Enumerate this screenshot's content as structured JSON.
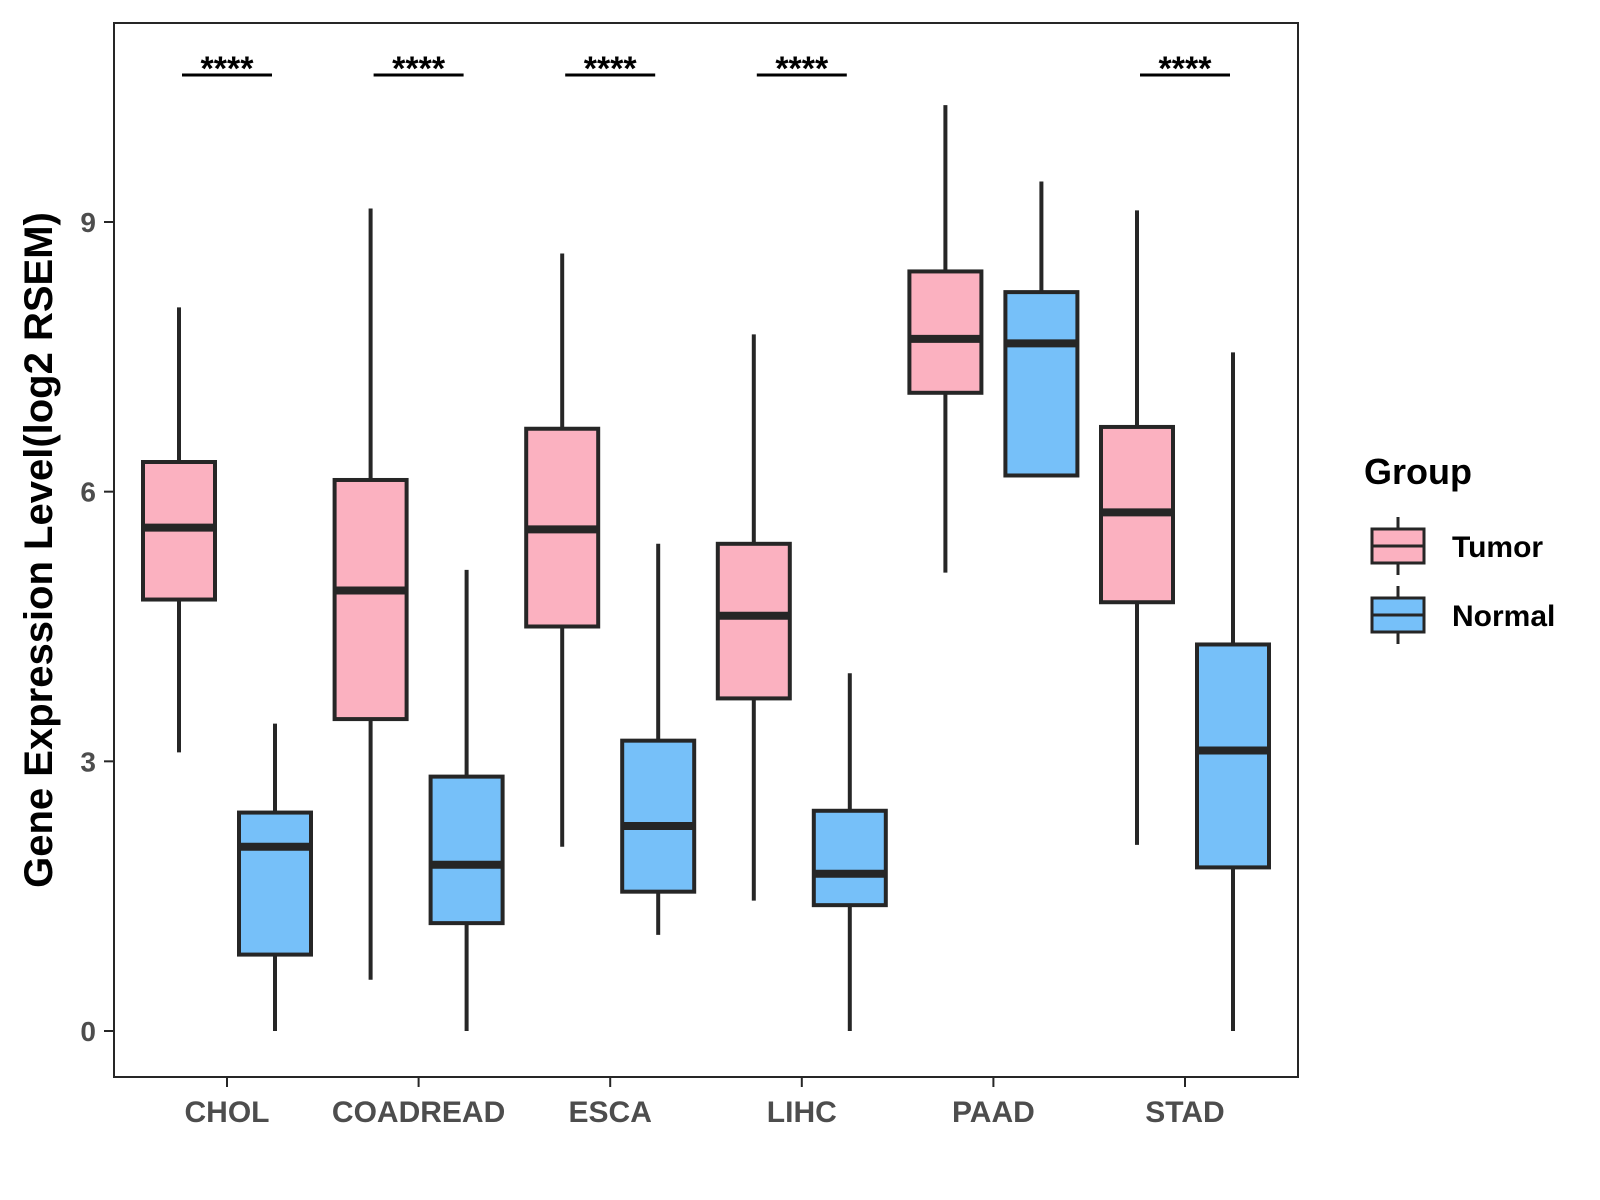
{
  "chart_data": {
    "type": "boxplot",
    "title": "",
    "xlabel": "",
    "ylabel": "Gene Expression Level(log2 RSEM)",
    "ylim": [
      -0.5,
      11.25
    ],
    "yticks": [
      0,
      3,
      6,
      9
    ],
    "grid": false,
    "legend_position": "right",
    "legend_title": "Group",
    "categories": [
      "CHOL",
      "COADREAD",
      "ESCA",
      "LIHC",
      "PAAD",
      "STAD"
    ],
    "series": [
      {
        "name": "Tumor",
        "color": "#FBB1C0",
        "boxes": [
          {
            "min": 3.1,
            "q1": 4.8,
            "median": 5.6,
            "q3": 6.33,
            "max": 8.05
          },
          {
            "min": 0.57,
            "q1": 3.47,
            "median": 4.9,
            "q3": 6.13,
            "max": 9.15
          },
          {
            "min": 2.05,
            "q1": 4.5,
            "median": 5.58,
            "q3": 6.7,
            "max": 8.65
          },
          {
            "min": 1.45,
            "q1": 3.7,
            "median": 4.62,
            "q3": 5.42,
            "max": 7.75
          },
          {
            "min": 5.1,
            "q1": 7.1,
            "median": 7.7,
            "q3": 8.45,
            "max": 10.3
          },
          {
            "min": 2.07,
            "q1": 4.77,
            "median": 5.77,
            "q3": 6.72,
            "max": 9.13
          }
        ]
      },
      {
        "name": "Normal",
        "color": "#76C0F9",
        "boxes": [
          {
            "min": 0.0,
            "q1": 0.85,
            "median": 2.05,
            "q3": 2.43,
            "max": 3.42
          },
          {
            "min": 0.0,
            "q1": 1.2,
            "median": 1.85,
            "q3": 2.83,
            "max": 5.13
          },
          {
            "min": 1.07,
            "q1": 1.55,
            "median": 2.28,
            "q3": 3.23,
            "max": 5.42
          },
          {
            "min": 0.0,
            "q1": 1.4,
            "median": 1.75,
            "q3": 2.45,
            "max": 3.98
          },
          {
            "min": 6.18,
            "q1": 6.18,
            "median": 7.65,
            "q3": 8.22,
            "max": 9.45
          },
          {
            "min": 0.0,
            "q1": 1.82,
            "median": 3.12,
            "q3": 4.3,
            "max": 7.55
          }
        ]
      }
    ],
    "annotations": [
      {
        "category": "CHOL",
        "text": "****"
      },
      {
        "category": "COADREAD",
        "text": "****"
      },
      {
        "category": "ESCA",
        "text": "****"
      },
      {
        "category": "LIHC",
        "text": "****"
      },
      {
        "category": "STAD",
        "text": "****"
      }
    ]
  }
}
